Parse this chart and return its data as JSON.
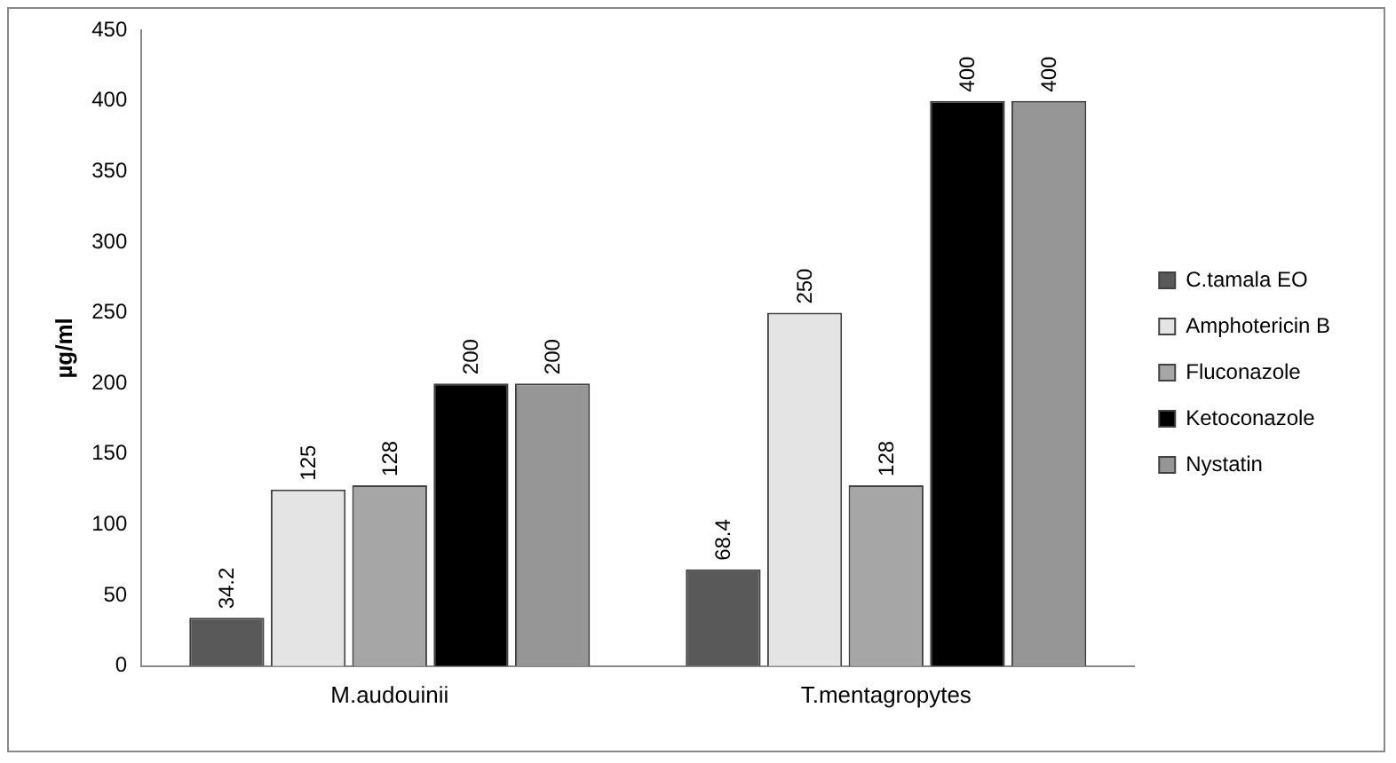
{
  "chart_data": {
    "type": "bar",
    "ylabel": "µg/ml",
    "categories": [
      "M.audouinii",
      "T.mentagropytes"
    ],
    "series": [
      {
        "name": "C.tamala EO",
        "color": "#595959",
        "values": [
          34.2,
          68.4
        ]
      },
      {
        "name": "Amphotericin B",
        "color": "#e4e4e4",
        "values": [
          125,
          250
        ]
      },
      {
        "name": "Fluconazole",
        "color": "#a6a6a6",
        "values": [
          128,
          128
        ]
      },
      {
        "name": "Ketoconazole",
        "color": "#000000",
        "values": [
          200,
          400
        ]
      },
      {
        "name": "Nystatin",
        "color": "#969696",
        "values": [
          200,
          400
        ]
      }
    ],
    "ylim": [
      0,
      450
    ],
    "yticks": [
      0,
      50,
      100,
      150,
      200,
      250,
      300,
      350,
      400,
      450
    ],
    "grid": false,
    "legend": "right",
    "data_labels": true
  }
}
